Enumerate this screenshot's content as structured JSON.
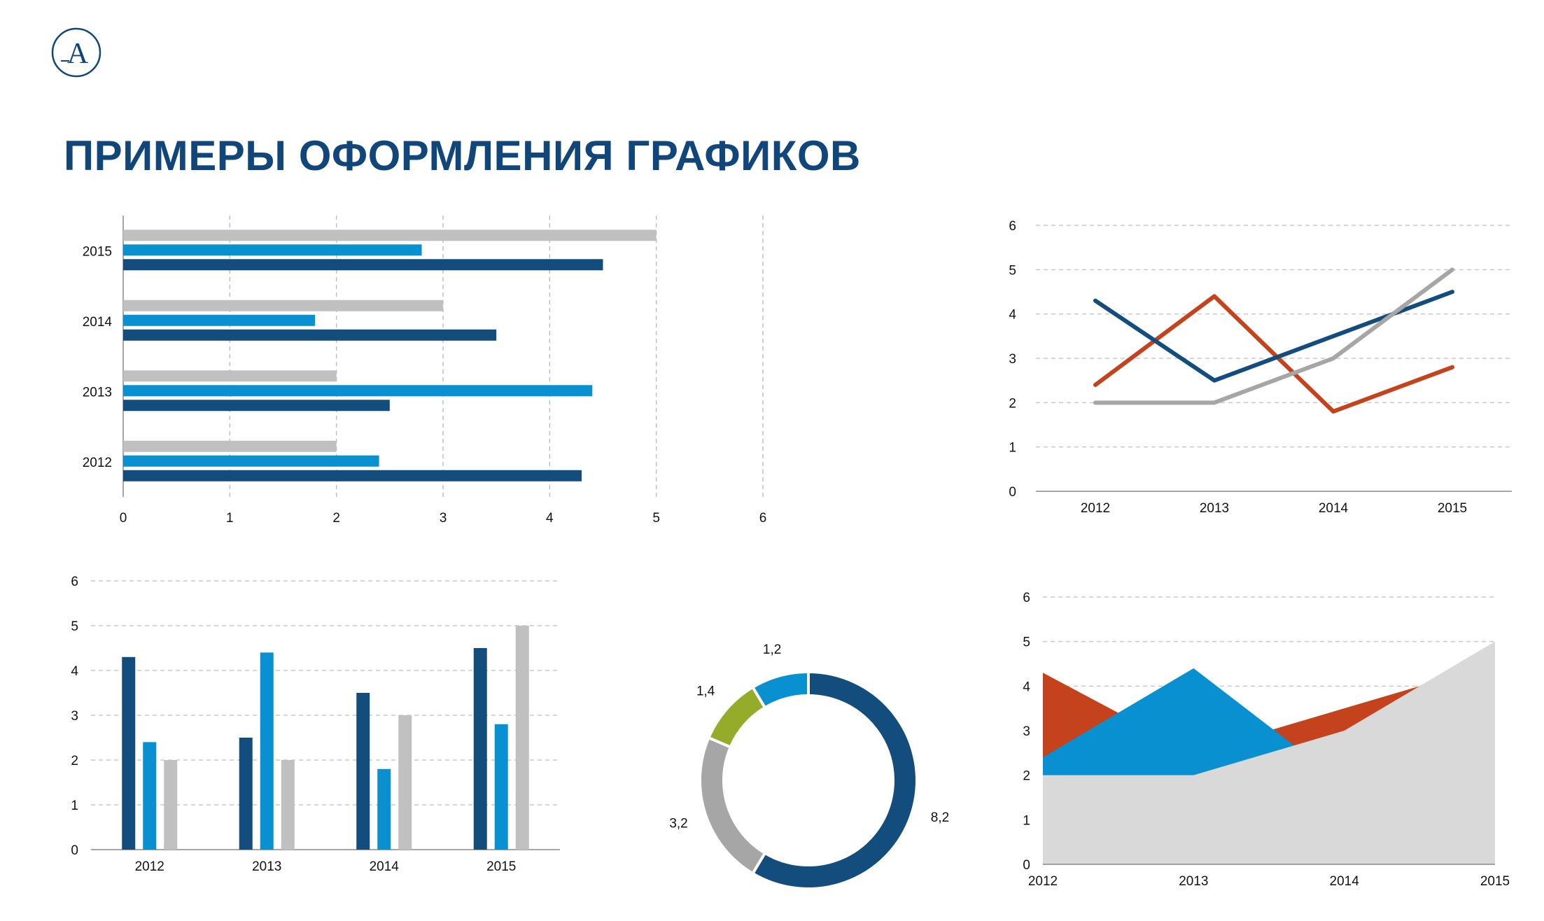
{
  "page": {
    "title": "ПРИМЕРЫ ОФОРМЛЕНИЯ ГРАФИКОВ",
    "logo": {
      "icon": "logo-a-icon",
      "letter": "A"
    }
  },
  "colors": {
    "title": "#11467a",
    "navy": "#134d7d",
    "blue": "#0890d0",
    "gray": "#c0c0c0",
    "orange": "#c5431c",
    "line_gray": "#a6a6a6",
    "green": "#94ac2a",
    "area_gray": "#d9d9d9"
  },
  "chart_data": [
    {
      "id": "hbar",
      "type": "bar",
      "orientation": "horizontal",
      "categories": [
        "2012",
        "2013",
        "2014",
        "2015"
      ],
      "series": [
        {
          "values": [
            4.3,
            2.5,
            3.5,
            4.5
          ],
          "color": "#134d7d"
        },
        {
          "values": [
            2.4,
            4.4,
            1.8,
            2.8
          ],
          "color": "#0890d0"
        },
        {
          "values": [
            2.0,
            2.0,
            3.0,
            5.0
          ],
          "color": "#c0c0c0"
        }
      ],
      "xlim": [
        0,
        6
      ],
      "xticks": [
        "0",
        "1",
        "2",
        "3",
        "4",
        "5",
        "6"
      ],
      "grid": "vertical-dashed"
    },
    {
      "id": "line",
      "type": "line",
      "x": [
        "2012",
        "2013",
        "2014",
        "2015"
      ],
      "series": [
        {
          "values": [
            4.3,
            2.5,
            3.5,
            4.5
          ],
          "color": "#134d7d"
        },
        {
          "values": [
            2.4,
            4.4,
            1.8,
            2.8
          ],
          "color": "#c5431c"
        },
        {
          "values": [
            2.0,
            2.0,
            3.0,
            5.0
          ],
          "color": "#a6a6a6"
        }
      ],
      "ylim": [
        0,
        6
      ],
      "yticks": [
        "0",
        "1",
        "2",
        "3",
        "4",
        "5",
        "6"
      ],
      "grid": "horizontal-dashed"
    },
    {
      "id": "vbar",
      "type": "bar",
      "orientation": "vertical",
      "categories": [
        "2012",
        "2013",
        "2014",
        "2015"
      ],
      "series": [
        {
          "values": [
            4.3,
            2.5,
            3.5,
            4.5
          ],
          "color": "#134d7d"
        },
        {
          "values": [
            2.4,
            4.4,
            1.8,
            2.8
          ],
          "color": "#0890d0"
        },
        {
          "values": [
            2.0,
            2.0,
            3.0,
            5.0
          ],
          "color": "#c0c0c0"
        }
      ],
      "ylim": [
        0,
        6
      ],
      "yticks": [
        "0",
        "1",
        "2",
        "3",
        "4",
        "5",
        "6"
      ],
      "grid": "horizontal-dashed"
    },
    {
      "id": "donut",
      "type": "pie",
      "variant": "donut",
      "slices": [
        {
          "value": 8.2,
          "label": "8,2",
          "color": "#134d7d"
        },
        {
          "value": 3.2,
          "label": "3,2",
          "color": "#a6a6a6"
        },
        {
          "value": 1.4,
          "label": "1,4",
          "color": "#94ac2a"
        },
        {
          "value": 1.2,
          "label": "1,2",
          "color": "#0890d0"
        }
      ]
    },
    {
      "id": "area",
      "type": "area",
      "x": [
        "2012",
        "2013",
        "2014",
        "2015"
      ],
      "series": [
        {
          "values": [
            4.3,
            2.5,
            3.5,
            4.5
          ],
          "color": "#c5431c"
        },
        {
          "values": [
            2.4,
            4.4,
            1.8,
            2.8
          ],
          "color": "#0890d0"
        },
        {
          "values": [
            2.0,
            2.0,
            3.0,
            5.0
          ],
          "color": "#d9d9d9"
        }
      ],
      "ylim": [
        0,
        6
      ],
      "yticks": [
        "0",
        "1",
        "2",
        "3",
        "4",
        "5",
        "6"
      ],
      "grid": "horizontal-dashed"
    }
  ]
}
